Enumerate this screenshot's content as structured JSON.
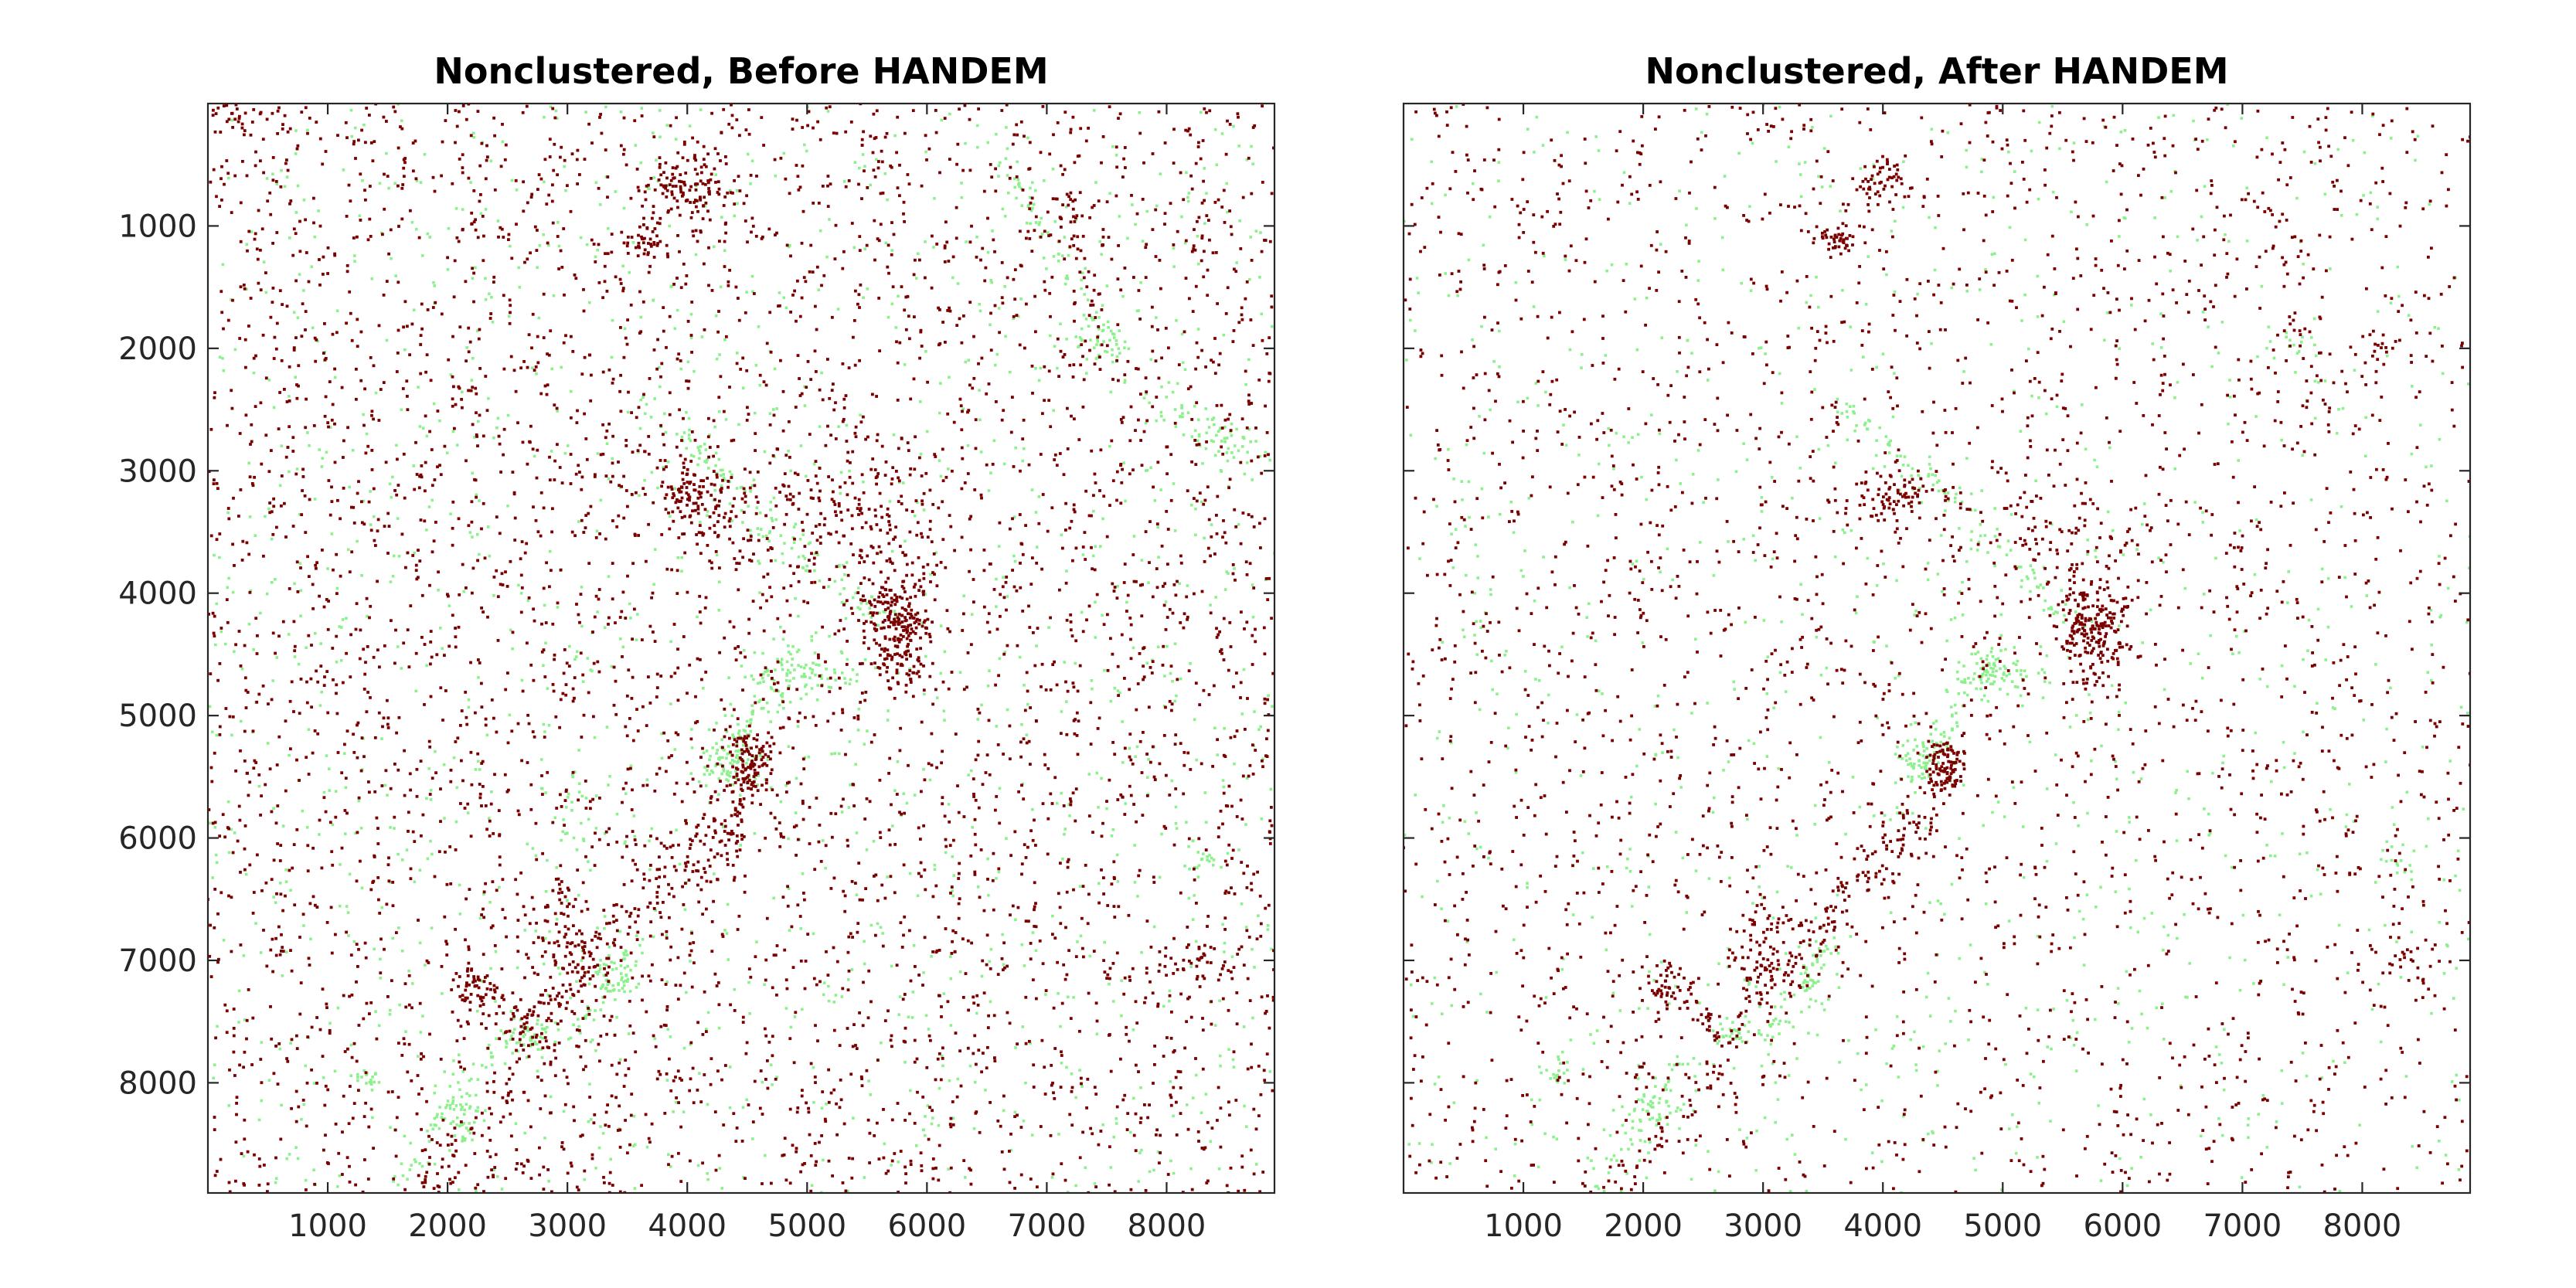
{
  "chart_data": [
    {
      "type": "scatter",
      "title": "Nonclustered, Before HANDEM",
      "xlabel": "",
      "ylabel": "",
      "xlim": [
        0,
        8900
      ],
      "ylim": [
        0,
        8900
      ],
      "y_reversed": true,
      "grid": false,
      "xticks": [
        1000,
        2000,
        3000,
        4000,
        5000,
        6000,
        7000,
        8000
      ],
      "yticks": [
        1000,
        2000,
        3000,
        4000,
        5000,
        6000,
        7000,
        8000
      ],
      "xtick_labels": [
        "1000",
        "2000",
        "3000",
        "4000",
        "5000",
        "6000",
        "7000",
        "8000"
      ],
      "ytick_labels": [
        "1000",
        "2000",
        "3000",
        "4000",
        "5000",
        "6000",
        "7000",
        "8000"
      ],
      "colors": {
        "dark": "#7a0000",
        "light": "#8cf08c"
      },
      "clusters": [
        {
          "color": "dark",
          "x": 5750,
          "y": 4250,
          "sx": 160,
          "sy": 260,
          "n": 260
        },
        {
          "color": "dark",
          "x": 4520,
          "y": 5400,
          "sx": 90,
          "sy": 140,
          "n": 110
        },
        {
          "color": "dark",
          "x": 4000,
          "y": 700,
          "sx": 200,
          "sy": 160,
          "n": 120
        },
        {
          "color": "dark",
          "x": 3650,
          "y": 1100,
          "sx": 90,
          "sy": 80,
          "n": 45
        },
        {
          "color": "dark",
          "x": 4100,
          "y": 3200,
          "sx": 220,
          "sy": 150,
          "n": 110
        },
        {
          "color": "dark",
          "x": 5300,
          "y": 3300,
          "sx": 500,
          "sy": 250,
          "n": 140
        },
        {
          "color": "dark",
          "x": 3000,
          "y": 6900,
          "sx": 150,
          "sy": 250,
          "n": 80
        },
        {
          "color": "dark",
          "x": 2200,
          "y": 7250,
          "sx": 90,
          "sy": 100,
          "n": 35
        },
        {
          "color": "dark",
          "x": 7200,
          "y": 900,
          "sx": 80,
          "sy": 150,
          "n": 20
        },
        {
          "color": "dark",
          "x": 8300,
          "y": 7000,
          "sx": 150,
          "sy": 100,
          "n": 30
        },
        {
          "color": "dark",
          "x": 250,
          "y": 100,
          "sx": 150,
          "sy": 80,
          "n": 30
        },
        {
          "color": "light",
          "x": 4950,
          "y": 4650,
          "sx": 220,
          "sy": 130,
          "n": 90
        },
        {
          "color": "light",
          "x": 4350,
          "y": 5350,
          "sx": 140,
          "sy": 120,
          "n": 70
        },
        {
          "color": "light",
          "x": 2700,
          "y": 7600,
          "sx": 100,
          "sy": 70,
          "n": 40
        },
        {
          "color": "light",
          "x": 2100,
          "y": 8250,
          "sx": 110,
          "sy": 120,
          "n": 45
        },
        {
          "color": "light",
          "x": 1300,
          "y": 7950,
          "sx": 60,
          "sy": 60,
          "n": 20
        },
        {
          "color": "light",
          "x": 3400,
          "y": 7100,
          "sx": 100,
          "sy": 150,
          "n": 35
        },
        {
          "color": "light",
          "x": 7400,
          "y": 1950,
          "sx": 140,
          "sy": 80,
          "n": 30
        },
        {
          "color": "light",
          "x": 8400,
          "y": 2700,
          "sx": 150,
          "sy": 80,
          "n": 25
        },
        {
          "color": "light",
          "x": 8300,
          "y": 6200,
          "sx": 100,
          "sy": 100,
          "n": 20
        },
        {
          "color": "light",
          "x": 3100,
          "y": 5800,
          "sx": 120,
          "sy": 200,
          "n": 20
        }
      ],
      "filaments": [
        {
          "color": "dark",
          "from": [
            2650,
            7650
          ],
          "to": [
            4300,
            5850
          ],
          "n": 160,
          "w": 120
        },
        {
          "color": "dark",
          "from": [
            1800,
            8850
          ],
          "to": [
            2700,
            7800
          ],
          "n": 50,
          "w": 90
        },
        {
          "color": "dark",
          "from": [
            2150,
            7000
          ],
          "to": [
            2700,
            7700
          ],
          "n": 40,
          "w": 80
        },
        {
          "color": "dark",
          "from": [
            4300,
            6000
          ],
          "to": [
            4600,
            5500
          ],
          "n": 30,
          "w": 60
        },
        {
          "color": "light",
          "from": [
            3600,
            2400
          ],
          "to": [
            5700,
            4300
          ],
          "n": 120,
          "w": 80
        },
        {
          "color": "light",
          "from": [
            6500,
            300
          ],
          "to": [
            7650,
            2100
          ],
          "n": 70,
          "w": 60
        },
        {
          "color": "light",
          "from": [
            2500,
            7600
          ],
          "to": [
            1600,
            8850
          ],
          "n": 50,
          "w": 80
        },
        {
          "color": "light",
          "from": [
            3000,
            7650
          ],
          "to": [
            3600,
            6800
          ],
          "n": 50,
          "w": 80
        },
        {
          "color": "light",
          "from": [
            4200,
            5600
          ],
          "to": [
            4900,
            4500
          ],
          "n": 60,
          "w": 70
        },
        {
          "color": "light",
          "from": [
            7800,
            2300
          ],
          "to": [
            8800,
            2900
          ],
          "n": 40,
          "w": 80
        },
        {
          "color": "dark",
          "from": [
            7100,
            700
          ],
          "to": [
            7500,
            2000
          ],
          "n": 25,
          "w": 60
        }
      ],
      "background": {
        "dark": 4300,
        "light": 1500
      }
    },
    {
      "type": "scatter",
      "title": "Nonclustered, After HANDEM",
      "xlabel": "",
      "ylabel": "",
      "xlim": [
        0,
        8900
      ],
      "ylim": [
        0,
        8900
      ],
      "y_reversed": true,
      "grid": false,
      "xticks": [
        1000,
        2000,
        3000,
        4000,
        5000,
        6000,
        7000,
        8000
      ],
      "yticks": [
        1000,
        2000,
        3000,
        4000,
        5000,
        6000,
        7000,
        8000
      ],
      "xtick_labels": [
        "1000",
        "2000",
        "3000",
        "4000",
        "5000",
        "6000",
        "7000",
        "8000"
      ],
      "ytick_labels": [
        "1000",
        "2000",
        "3000",
        "4000",
        "5000",
        "6000",
        "7000",
        "8000"
      ],
      "colors": {
        "dark": "#7a0000",
        "light": "#8cf08c"
      },
      "clusters": [
        {
          "color": "dark",
          "x": 5750,
          "y": 4250,
          "sx": 150,
          "sy": 250,
          "n": 240
        },
        {
          "color": "dark",
          "x": 4520,
          "y": 5400,
          "sx": 90,
          "sy": 130,
          "n": 100
        },
        {
          "color": "dark",
          "x": 4000,
          "y": 650,
          "sx": 120,
          "sy": 100,
          "n": 50
        },
        {
          "color": "dark",
          "x": 3650,
          "y": 1100,
          "sx": 80,
          "sy": 70,
          "n": 40
        },
        {
          "color": "dark",
          "x": 4100,
          "y": 3200,
          "sx": 200,
          "sy": 130,
          "n": 90
        },
        {
          "color": "dark",
          "x": 5500,
          "y": 3400,
          "sx": 400,
          "sy": 200,
          "n": 60
        },
        {
          "color": "dark",
          "x": 3000,
          "y": 6900,
          "sx": 140,
          "sy": 240,
          "n": 70
        },
        {
          "color": "dark",
          "x": 2200,
          "y": 7250,
          "sx": 80,
          "sy": 90,
          "n": 30
        },
        {
          "color": "dark",
          "x": 8300,
          "y": 7000,
          "sx": 150,
          "sy": 100,
          "n": 30
        },
        {
          "color": "dark",
          "x": 8200,
          "y": 2000,
          "sx": 60,
          "sy": 60,
          "n": 10
        },
        {
          "color": "light",
          "x": 4950,
          "y": 4650,
          "sx": 200,
          "sy": 120,
          "n": 80
        },
        {
          "color": "light",
          "x": 4350,
          "y": 5350,
          "sx": 130,
          "sy": 110,
          "n": 60
        },
        {
          "color": "light",
          "x": 2750,
          "y": 7600,
          "sx": 90,
          "sy": 60,
          "n": 30
        },
        {
          "color": "light",
          "x": 2100,
          "y": 8250,
          "sx": 100,
          "sy": 110,
          "n": 40
        },
        {
          "color": "light",
          "x": 1300,
          "y": 7950,
          "sx": 60,
          "sy": 60,
          "n": 18
        },
        {
          "color": "light",
          "x": 3400,
          "y": 7100,
          "sx": 100,
          "sy": 150,
          "n": 30
        },
        {
          "color": "light",
          "x": 8300,
          "y": 6200,
          "sx": 100,
          "sy": 100,
          "n": 18
        },
        {
          "color": "light",
          "x": 7400,
          "y": 1950,
          "sx": 120,
          "sy": 70,
          "n": 15
        }
      ],
      "filaments": [
        {
          "color": "dark",
          "from": [
            2650,
            7650
          ],
          "to": [
            4300,
            5850
          ],
          "n": 150,
          "w": 110
        },
        {
          "color": "dark",
          "from": [
            1800,
            8850
          ],
          "to": [
            2700,
            7800
          ],
          "n": 45,
          "w": 80
        },
        {
          "color": "dark",
          "from": [
            2150,
            7000
          ],
          "to": [
            2700,
            7700
          ],
          "n": 35,
          "w": 70
        },
        {
          "color": "dark",
          "from": [
            4300,
            6000
          ],
          "to": [
            4600,
            5500
          ],
          "n": 25,
          "w": 60
        },
        {
          "color": "light",
          "from": [
            3600,
            2400
          ],
          "to": [
            5700,
            4300
          ],
          "n": 110,
          "w": 70
        },
        {
          "color": "light",
          "from": [
            2500,
            7600
          ],
          "to": [
            1600,
            8850
          ],
          "n": 45,
          "w": 70
        },
        {
          "color": "light",
          "from": [
            3000,
            7650
          ],
          "to": [
            3600,
            6800
          ],
          "n": 45,
          "w": 70
        },
        {
          "color": "light",
          "from": [
            4200,
            5600
          ],
          "to": [
            4900,
            4500
          ],
          "n": 55,
          "w": 60
        },
        {
          "color": "light",
          "from": [
            500,
            3000
          ],
          "to": [
            700,
            4500
          ],
          "n": 20,
          "w": 100
        },
        {
          "color": "dark",
          "from": [
            7100,
            700
          ],
          "to": [
            7500,
            2000
          ],
          "n": 20,
          "w": 60
        }
      ],
      "background": {
        "dark": 2600,
        "light": 1000
      }
    }
  ]
}
